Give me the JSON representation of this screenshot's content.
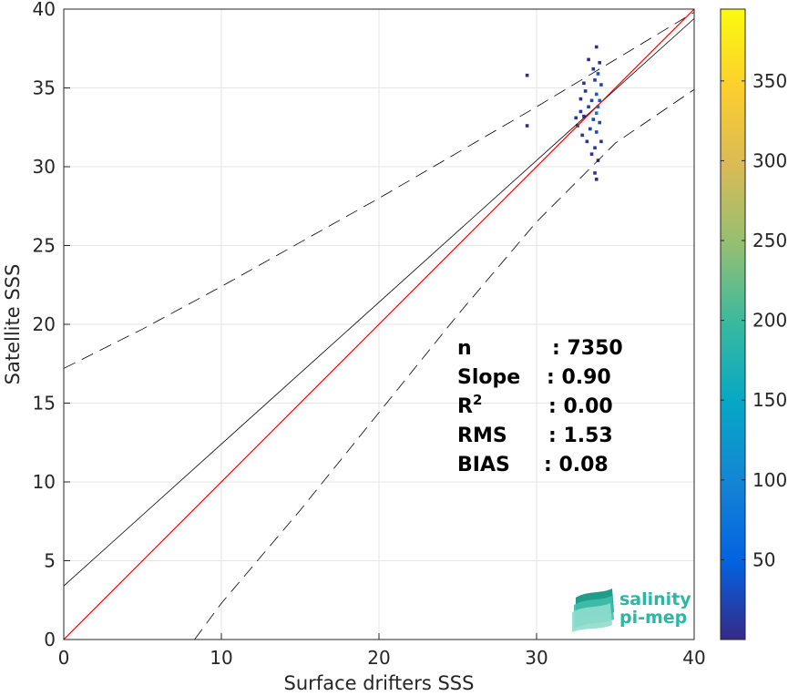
{
  "chart_data": {
    "type": "scatter",
    "xlabel": "Surface drifters SSS",
    "ylabel": "Satellite SSS",
    "xlim": [
      0,
      40
    ],
    "ylim": [
      0,
      40
    ],
    "x_ticks": [
      0,
      10,
      20,
      30,
      40
    ],
    "y_ticks": [
      0,
      5,
      10,
      15,
      20,
      25,
      30,
      35,
      40
    ],
    "grid": true,
    "colorbar": {
      "range": [
        0,
        395
      ],
      "ticks": [
        50,
        100,
        150,
        200,
        250,
        300,
        350
      ],
      "colormap": [
        "#352a87",
        "#0363e1",
        "#1485d4",
        "#06a7c6",
        "#38b99e",
        "#92bf73",
        "#d9ba56",
        "#fcce2e",
        "#f9fb0e"
      ]
    },
    "lines": {
      "identity": {
        "x": [
          0,
          40
        ],
        "y": [
          0,
          40
        ],
        "color": "#ff0000"
      },
      "regression": {
        "x": [
          0,
          40
        ],
        "y": [
          3.4,
          39.4
        ],
        "color": "#000000"
      },
      "upper_bound": {
        "x": [
          0,
          5,
          10,
          15,
          20,
          25,
          30,
          35,
          40
        ],
        "y": [
          17.2,
          19.7,
          22.4,
          25.2,
          28.0,
          30.9,
          33.8,
          36.8,
          39.8
        ],
        "dash": true
      },
      "lower_bound": {
        "x": [
          8.3,
          10,
          15,
          20,
          25,
          30,
          35,
          40
        ],
        "y": [
          0,
          2.3,
          8.2,
          14.4,
          20.6,
          26.5,
          31.5,
          34.9
        ],
        "dash": true
      }
    },
    "density_points": [
      {
        "x": 29.4,
        "y": 35.8,
        "v": 2
      },
      {
        "x": 29.4,
        "y": 32.6,
        "v": 2
      },
      {
        "x": 32.5,
        "y": 33.1,
        "v": 4
      },
      {
        "x": 32.6,
        "y": 32.6,
        "v": 6
      },
      {
        "x": 32.8,
        "y": 34.3,
        "v": 3
      },
      {
        "x": 32.8,
        "y": 33.5,
        "v": 8
      },
      {
        "x": 32.9,
        "y": 32.0,
        "v": 10
      },
      {
        "x": 33.0,
        "y": 35.3,
        "v": 4
      },
      {
        "x": 33.0,
        "y": 33.2,
        "v": 12
      },
      {
        "x": 33.1,
        "y": 34.8,
        "v": 6
      },
      {
        "x": 33.2,
        "y": 31.6,
        "v": 8
      },
      {
        "x": 33.3,
        "y": 33.8,
        "v": 15
      },
      {
        "x": 33.3,
        "y": 36.8,
        "v": 3
      },
      {
        "x": 33.4,
        "y": 32.4,
        "v": 12
      },
      {
        "x": 33.5,
        "y": 34.2,
        "v": 20
      },
      {
        "x": 33.5,
        "y": 30.8,
        "v": 6
      },
      {
        "x": 33.6,
        "y": 36.2,
        "v": 10
      },
      {
        "x": 33.6,
        "y": 33.0,
        "v": 25
      },
      {
        "x": 33.7,
        "y": 35.5,
        "v": 18
      },
      {
        "x": 33.7,
        "y": 29.6,
        "v": 5
      },
      {
        "x": 33.7,
        "y": 31.2,
        "v": 14
      },
      {
        "x": 33.8,
        "y": 34.6,
        "v": 45
      },
      {
        "x": 33.8,
        "y": 33.4,
        "v": 80
      },
      {
        "x": 33.8,
        "y": 32.2,
        "v": 30
      },
      {
        "x": 33.8,
        "y": 37.6,
        "v": 6
      },
      {
        "x": 33.8,
        "y": 29.2,
        "v": 4
      },
      {
        "x": 33.9,
        "y": 35.9,
        "v": 35
      },
      {
        "x": 33.9,
        "y": 33.8,
        "v": 70
      },
      {
        "x": 33.9,
        "y": 30.4,
        "v": 10
      },
      {
        "x": 34.0,
        "y": 34.2,
        "v": 50
      },
      {
        "x": 34.0,
        "y": 36.6,
        "v": 12
      },
      {
        "x": 34.0,
        "y": 32.8,
        "v": 28
      },
      {
        "x": 34.1,
        "y": 35.2,
        "v": 22
      },
      {
        "x": 34.1,
        "y": 31.6,
        "v": 8
      }
    ],
    "stats": [
      {
        "label": "n",
        "value": ": 7350"
      },
      {
        "label": "Slope",
        "value": ": 0.90"
      },
      {
        "label": "R",
        "sup": "2",
        "value": ": 0.00"
      },
      {
        "label": "RMS",
        "value": ": 1.53"
      },
      {
        "label": "BIAS",
        "value": ": 0.08"
      }
    ]
  },
  "logo": {
    "line1": "salinity",
    "line2": "pi-mep"
  }
}
